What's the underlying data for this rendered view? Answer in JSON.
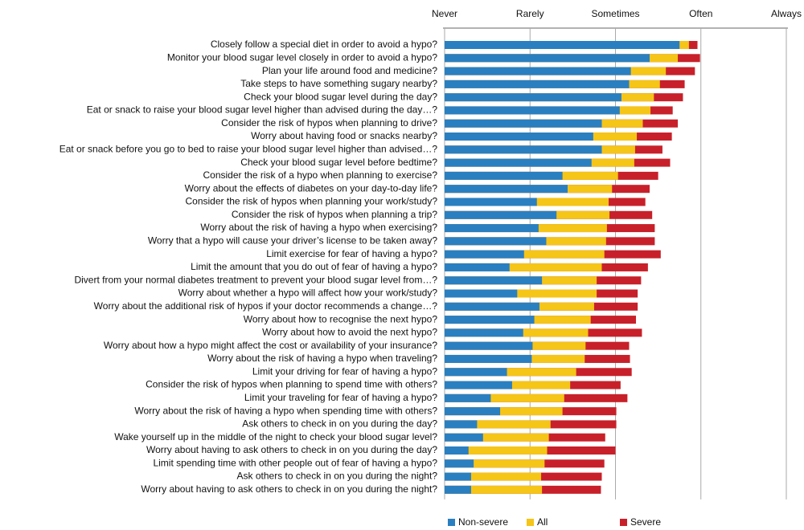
{
  "chart_data": {
    "type": "bar",
    "orientation": "horizontal",
    "categories": [
      "Closely follow a special diet in order to avoid a hypo?",
      "Monitor your blood sugar level closely in order to avoid a hypo?",
      "Plan your life around food and medicine?",
      "Take steps to have something sugary nearby?",
      "Check your blood sugar level during the day?",
      "Eat or snack to raise your blood sugar level higher than advised during the day…?",
      "Consider the risk of hypos when planning to drive?",
      "Worry about having food or snacks nearby?",
      "Eat or snack before you go to bed to raise your blood sugar level higher than advised…?",
      "Check your blood sugar level before bedtime?",
      "Consider the risk of a hypo when planning to exercise?",
      "Worry about the effects of diabetes on your day-to-day life?",
      "Consider the risk of hypos when planning your work/study?",
      "Consider the risk of hypos when planning a trip?",
      "Worry about the risk of having a hypo when exercising?",
      "Worry that a hypo will cause your driver’s license to be taken away?",
      "Limit exercise for fear of having a hypo?",
      "Limit the amount that you do out of fear of having a hypo?",
      "Divert from your normal diabetes treatment to prevent your blood sugar level from…?",
      "Worry about whether a hypo will affect how your work/study?",
      "Worry about the additional risk of hypos if your doctor recommends a change…?",
      "Worry about how to recognise the next hypo?",
      "Worry about how to avoid the next hypo?",
      "Worry about how a hypo might affect the cost or availability of your insurance?",
      "Worry about the risk of having a hypo when traveling?",
      "Limit your driving for fear of having a hypo?",
      "Consider the risk of hypos when planning to spend time with others?",
      "Limit your traveling for fear of having a hypo?",
      "Worry about the risk of having a hypo when spending time with others?",
      "Ask others to check in on you during the day?",
      "Wake yourself up in the middle of the night to check your blood sugar level?",
      "Worry about having to ask others to check in on you during the day?",
      "Limit spending time with other people out of fear of having a hypo?",
      "Ask others to check in on you during the night?",
      "Worry about having to ask others to check in on you during the night?"
    ],
    "series": [
      {
        "name": "Non-severe",
        "color": "#2a7fc1",
        "values": [
          2.75,
          2.4,
          2.18,
          2.16,
          2.07,
          2.05,
          1.84,
          1.74,
          1.84,
          1.72,
          1.38,
          1.44,
          1.08,
          1.31,
          1.1,
          1.19,
          0.93,
          0.76,
          1.14,
          0.85,
          1.11,
          1.05,
          0.92,
          1.03,
          1.02,
          0.73,
          0.79,
          0.54,
          0.65,
          0.38,
          0.45,
          0.28,
          0.34,
          0.31,
          0.31
        ]
      },
      {
        "name": "All",
        "color": "#f5c518",
        "values": [
          2.86,
          2.73,
          2.59,
          2.52,
          2.45,
          2.41,
          2.32,
          2.25,
          2.23,
          2.22,
          2.03,
          1.96,
          1.92,
          1.93,
          1.9,
          1.89,
          1.87,
          1.84,
          1.78,
          1.78,
          1.75,
          1.71,
          1.68,
          1.65,
          1.64,
          1.54,
          1.47,
          1.4,
          1.38,
          1.24,
          1.22,
          1.2,
          1.17,
          1.13,
          1.14
        ]
      },
      {
        "name": "Severe",
        "color": "#c8202a",
        "values": [
          2.96,
          2.99,
          2.93,
          2.81,
          2.79,
          2.67,
          2.73,
          2.66,
          2.55,
          2.64,
          2.5,
          2.4,
          2.35,
          2.43,
          2.46,
          2.46,
          2.53,
          2.38,
          2.3,
          2.26,
          2.26,
          2.24,
          2.31,
          2.16,
          2.17,
          2.19,
          2.06,
          2.14,
          2.01,
          2.01,
          1.88,
          2.0,
          1.87,
          1.84,
          1.83
        ]
      }
    ],
    "xlim": [
      0,
      4
    ],
    "xticks": [
      {
        "value": 0,
        "label": "Never"
      },
      {
        "value": 1,
        "label": "Rarely"
      },
      {
        "value": 2,
        "label": "Sometimes"
      },
      {
        "value": 3,
        "label": "Often"
      },
      {
        "value": 4,
        "label": "Always"
      }
    ],
    "grid": true,
    "legend": "bottom"
  }
}
